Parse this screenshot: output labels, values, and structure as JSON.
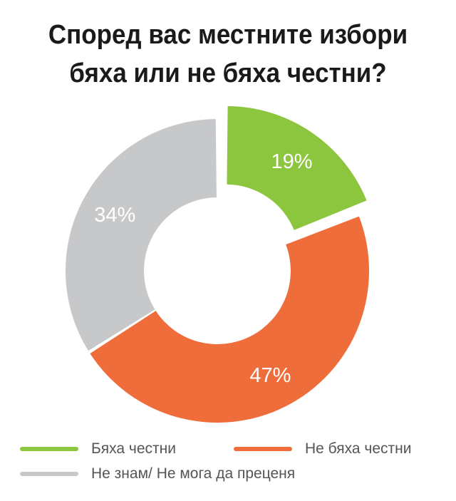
{
  "chart_data": {
    "type": "pie",
    "title_lines": [
      "Според вас местните избори",
      "бяха или не бяха честни?"
    ],
    "slices": [
      {
        "label": "Бяха честни",
        "value": 19,
        "display": "19%",
        "color": "#8cc63f",
        "exploded": true
      },
      {
        "label": "Не бяха честни",
        "value": 47,
        "display": "47%",
        "color": "#ef6c3b",
        "exploded": false
      },
      {
        "label": "Не знам/ Не мога да преценя",
        "value": 34,
        "display": "34%",
        "color": "#c7c8ca",
        "exploded": false
      }
    ],
    "legend_placement": "bottom"
  }
}
